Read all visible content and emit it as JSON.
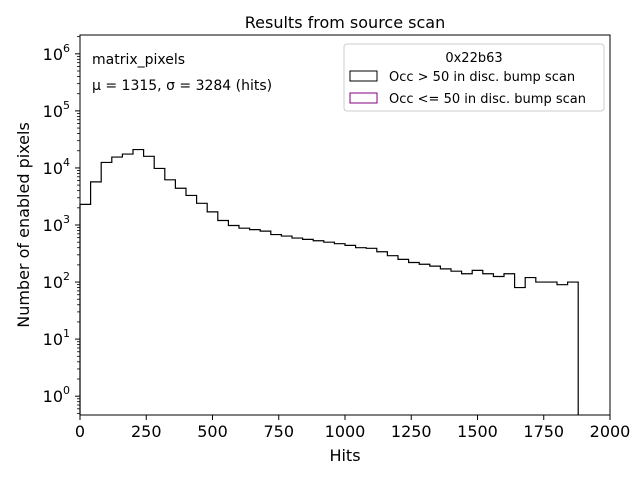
{
  "chart_data": {
    "type": "histogram",
    "title": "Results from source scan",
    "xlabel": "Hits",
    "ylabel": "Number of enabled pixels",
    "xlim": [
      0,
      2000
    ],
    "ylim_log10": [
      -0.33,
      6.33
    ],
    "yscale": "log",
    "x_ticks": [
      0,
      250,
      500,
      750,
      1000,
      1250,
      1500,
      1750,
      2000
    ],
    "x_tick_labels": [
      "0",
      "250",
      "500",
      "750",
      "1000",
      "1250",
      "1500",
      "1750",
      "2000"
    ],
    "y_tick_exponents": [
      0,
      1,
      2,
      3,
      4,
      5,
      6
    ],
    "y_tick_base": "10",
    "y_tick_sup": [
      "0",
      "1",
      "2",
      "3",
      "4",
      "5",
      "6"
    ],
    "annotations": {
      "name": "matrix_pixels",
      "stats": "μ = 1315, σ = 3284 (hits)"
    },
    "legend": {
      "title": "0x22b63",
      "position": "top-right",
      "entries": [
        {
          "label": "Occ > 50 in disc. bump scan",
          "color": "#000000"
        },
        {
          "label": "Occ <= 50 in disc. bump scan",
          "color": "#800080"
        }
      ]
    },
    "bin_width": 40,
    "bin_start": 0,
    "series": [
      {
        "name": "Occ > 50 in disc. bump scan",
        "color": "#000000",
        "values": [
          2300,
          5700,
          12500,
          15500,
          17500,
          21000,
          16000,
          9800,
          6200,
          4400,
          3300,
          2400,
          1700,
          1200,
          980,
          880,
          830,
          780,
          680,
          640,
          590,
          560,
          530,
          500,
          470,
          440,
          400,
          390,
          340,
          290,
          250,
          220,
          205,
          190,
          170,
          155,
          140,
          160,
          140,
          125,
          140,
          80,
          120,
          100,
          100,
          90,
          100
        ]
      }
    ]
  }
}
